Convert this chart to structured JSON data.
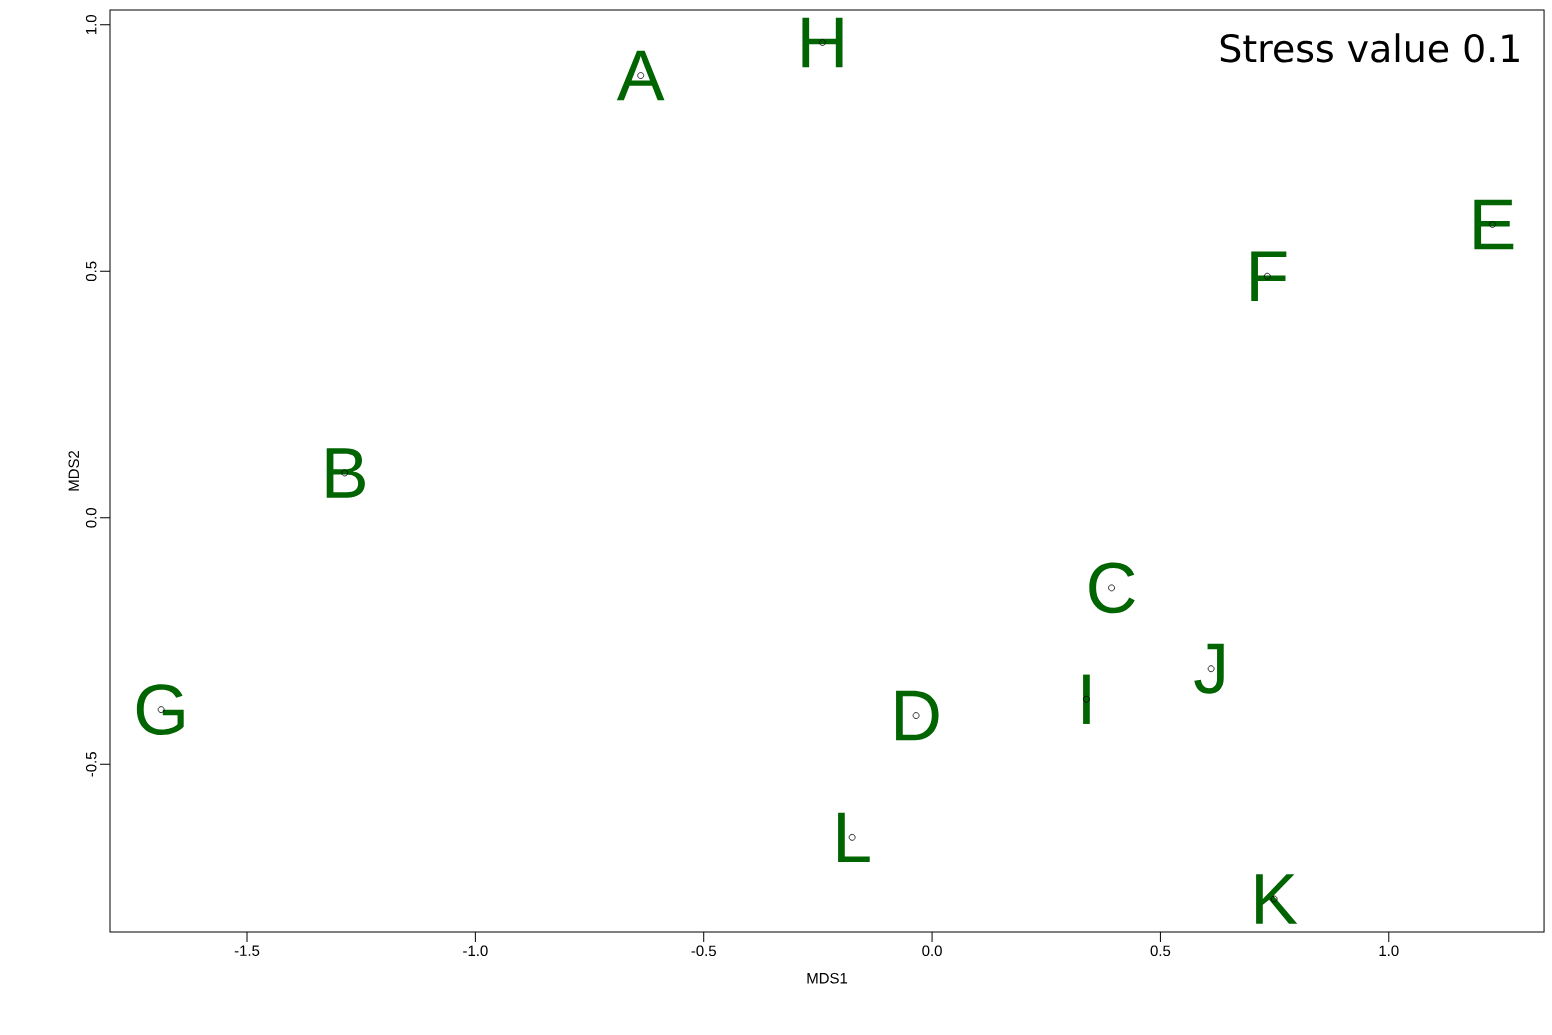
{
  "chart_data": {
    "type": "scatter",
    "xlabel": "MDS1",
    "ylabel": "MDS2",
    "xlim": [
      -1.8,
      1.34
    ],
    "ylim": [
      -0.84,
      1.03
    ],
    "xticks": [
      {
        "value": -1.5,
        "label": "-1.5"
      },
      {
        "value": -1.0,
        "label": "-1.0"
      },
      {
        "value": -0.5,
        "label": "-0.5"
      },
      {
        "value": 0.0,
        "label": "0.0"
      },
      {
        "value": 0.5,
        "label": "0.5"
      },
      {
        "value": 1.0,
        "label": "1.0"
      }
    ],
    "yticks": [
      {
        "value": -0.5,
        "label": "-0.5"
      },
      {
        "value": 0.0,
        "label": "0.0"
      },
      {
        "value": 0.5,
        "label": "0.5"
      },
      {
        "value": 1.0,
        "label": "1.0"
      }
    ],
    "marker": "circle",
    "series": [
      {
        "color": "#000000",
        "x": [
          -0.638,
          -1.286,
          0.393,
          -0.035,
          1.227,
          0.734,
          -1.688,
          -0.24,
          0.338,
          0.611,
          0.749,
          -0.175
        ],
        "values": [
          0.897,
          0.091,
          -0.142,
          -0.401,
          0.595,
          0.49,
          -0.389,
          0.964,
          -0.368,
          -0.306,
          -0.773,
          -0.648
        ]
      }
    ],
    "annotations": [
      "Stress value 0.1",
      {
        "text": "A",
        "x": -0.638,
        "y": 0.897
      },
      {
        "text": "B",
        "x": -1.286,
        "y": 0.091
      },
      {
        "text": "C",
        "x": 0.393,
        "y": -0.142
      },
      {
        "text": "D",
        "x": -0.035,
        "y": -0.401
      },
      {
        "text": "E",
        "x": 1.227,
        "y": 0.595
      },
      {
        "text": "F",
        "x": 0.734,
        "y": 0.49
      },
      {
        "text": "G",
        "x": -1.688,
        "y": -0.389
      },
      {
        "text": "H",
        "x": -0.24,
        "y": 0.964
      },
      {
        "text": "I",
        "x": 0.338,
        "y": -0.368
      },
      {
        "text": "J",
        "x": 0.611,
        "y": -0.306
      },
      {
        "text": "K",
        "x": 0.749,
        "y": -0.773
      },
      {
        "text": "L",
        "x": -0.175,
        "y": -0.648
      }
    ]
  }
}
